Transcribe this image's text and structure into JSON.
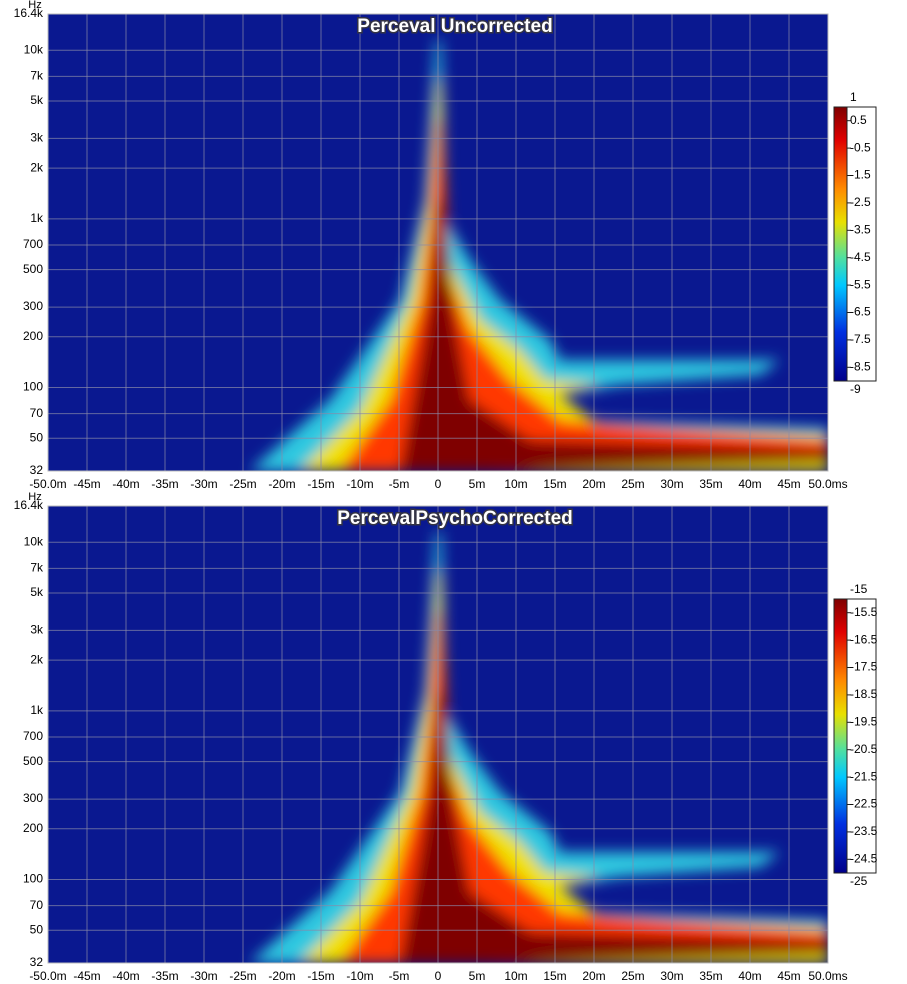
{
  "chart_data": [
    {
      "type": "heatmap",
      "title": "Perceval Uncorrected",
      "y_label": "Hz",
      "ylog": true,
      "grid": true,
      "xlim": [
        -50,
        50
      ],
      "ylim": [
        32,
        16400
      ],
      "xticks": [
        {
          "value": -50,
          "label": "-50.0m"
        },
        {
          "value": -45,
          "label": "-45m"
        },
        {
          "value": -40,
          "label": "-40m"
        },
        {
          "value": -35,
          "label": "-35m"
        },
        {
          "value": -30,
          "label": "-30m"
        },
        {
          "value": -25,
          "label": "-25m"
        },
        {
          "value": -20,
          "label": "-20m"
        },
        {
          "value": -15,
          "label": "-15m"
        },
        {
          "value": -10,
          "label": "-10m"
        },
        {
          "value": -5,
          "label": "-5m"
        },
        0,
        {
          "value": 5,
          "label": "5m"
        },
        {
          "value": 10,
          "label": "10m"
        },
        {
          "value": 15,
          "label": "15m"
        },
        {
          "value": 20,
          "label": "20m"
        },
        {
          "value": 25,
          "label": "25m"
        },
        {
          "value": 30,
          "label": "30m"
        },
        {
          "value": 35,
          "label": "35m"
        },
        {
          "value": 40,
          "label": "40m"
        },
        {
          "value": 45,
          "label": "45m"
        },
        {
          "value": 50,
          "label": "50.0ms"
        }
      ],
      "yticks": [
        {
          "value": 16400,
          "label": "16.4k"
        },
        {
          "value": 10000,
          "label": "10k"
        },
        {
          "value": 7000,
          "label": "7k"
        },
        {
          "value": 5000,
          "label": "5k"
        },
        {
          "value": 3000,
          "label": "3k"
        },
        {
          "value": 2000,
          "label": "2k"
        },
        {
          "value": 1000,
          "label": "1k"
        },
        700,
        500,
        300,
        200,
        100,
        70,
        50,
        32
      ],
      "zlim": [
        -9,
        1
      ],
      "zticks": [
        1,
        0.5,
        -0.5,
        -1.5,
        -2.5,
        -3.5,
        -4.5,
        -5.5,
        -6.5,
        -7.5,
        -8.5,
        -9
      ]
    },
    {
      "type": "heatmap",
      "title": "PercevalPsychoCorrected",
      "y_label": "Hz",
      "ylog": true,
      "grid": true,
      "xlim": [
        -50,
        50
      ],
      "ylim": [
        32,
        16400
      ],
      "xticks": [
        {
          "value": -50,
          "label": "-50.0m"
        },
        {
          "value": -45,
          "label": "-45m"
        },
        {
          "value": -40,
          "label": "-40m"
        },
        {
          "value": -35,
          "label": "-35m"
        },
        {
          "value": -30,
          "label": "-30m"
        },
        {
          "value": -25,
          "label": "-25m"
        },
        {
          "value": -20,
          "label": "-20m"
        },
        {
          "value": -15,
          "label": "-15m"
        },
        {
          "value": -10,
          "label": "-10m"
        },
        {
          "value": -5,
          "label": "-5m"
        },
        0,
        {
          "value": 5,
          "label": "5m"
        },
        {
          "value": 10,
          "label": "10m"
        },
        {
          "value": 15,
          "label": "15m"
        },
        {
          "value": 20,
          "label": "20m"
        },
        {
          "value": 25,
          "label": "25m"
        },
        {
          "value": 30,
          "label": "30m"
        },
        {
          "value": 35,
          "label": "35m"
        },
        {
          "value": 40,
          "label": "40m"
        },
        {
          "value": 45,
          "label": "45m"
        },
        {
          "value": 50,
          "label": "50.0ms"
        }
      ],
      "yticks": [
        {
          "value": 16400,
          "label": "16.4k"
        },
        {
          "value": 10000,
          "label": "10k"
        },
        {
          "value": 7000,
          "label": "7k"
        },
        {
          "value": 5000,
          "label": "5k"
        },
        {
          "value": 3000,
          "label": "3k"
        },
        {
          "value": 2000,
          "label": "2k"
        },
        {
          "value": 1000,
          "label": "1k"
        },
        700,
        500,
        300,
        200,
        100,
        70,
        50,
        32
      ],
      "zlim": [
        -25,
        -15
      ],
      "zticks": [
        -15,
        -15.5,
        -16.5,
        -17.5,
        -18.5,
        -19.5,
        -20.5,
        -21.5,
        -22.5,
        -23.5,
        -24.5,
        -25
      ]
    }
  ]
}
